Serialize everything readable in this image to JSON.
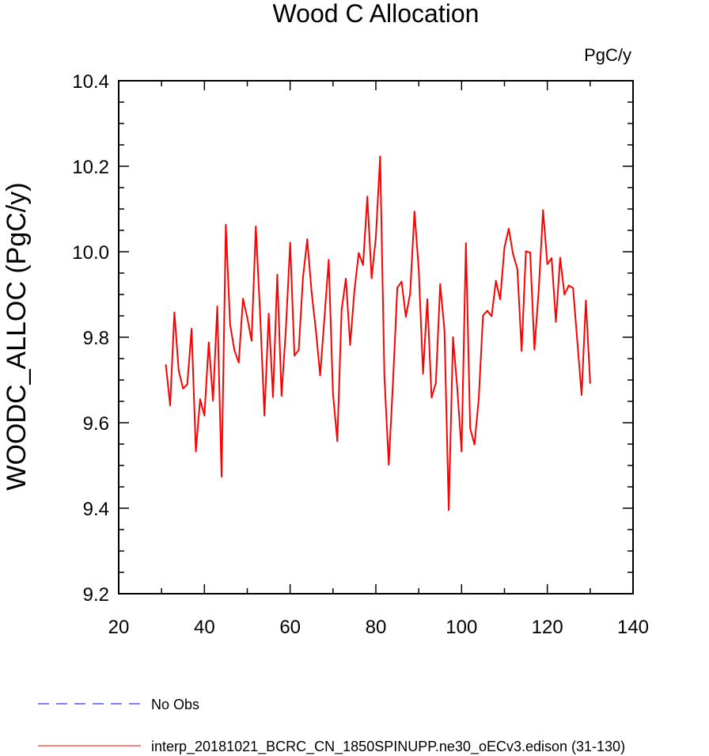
{
  "chart_data": {
    "type": "line",
    "title": "Wood C Allocation",
    "units_label": "PgC/y",
    "xlabel": "",
    "ylabel": "WOODC_ALLOC  (PgC/y)",
    "xlim": [
      20,
      140
    ],
    "ylim": [
      9.2,
      10.4
    ],
    "x_ticks": [
      20,
      40,
      60,
      80,
      100,
      120,
      140
    ],
    "x_tick_labels": [
      "20",
      "40",
      "60",
      "80",
      "100",
      "120",
      "140"
    ],
    "y_ticks": [
      9.2,
      9.4,
      9.6,
      9.8,
      10.0,
      10.2,
      10.4
    ],
    "y_tick_labels": [
      "9.2",
      "9.4",
      "9.6",
      "9.8",
      "10.0",
      "10.2",
      "10.4"
    ],
    "grid": false,
    "legend_position": "bottom-left",
    "series": [
      {
        "name": "No Obs",
        "color": "#0000ff",
        "style": "dashed",
        "x": [],
        "values": []
      },
      {
        "name": "interp_20181021_BCRC_CN_1850SPINUPP.ne30_oECv3.edison (31-130)",
        "color": "#ff0000",
        "style": "solid",
        "x": [
          31,
          32,
          33,
          34,
          35,
          36,
          37,
          38,
          39,
          40,
          41,
          42,
          43,
          44,
          45,
          46,
          47,
          48,
          49,
          50,
          51,
          52,
          53,
          54,
          55,
          56,
          57,
          58,
          59,
          60,
          61,
          62,
          63,
          64,
          65,
          66,
          67,
          68,
          69,
          70,
          71,
          72,
          73,
          74,
          75,
          76,
          77,
          78,
          79,
          80,
          81,
          82,
          83,
          84,
          85,
          86,
          87,
          88,
          89,
          90,
          91,
          92,
          93,
          94,
          95,
          96,
          97,
          98,
          99,
          100,
          101,
          102,
          103,
          104,
          105,
          106,
          107,
          108,
          109,
          110,
          111,
          112,
          113,
          114,
          115,
          116,
          117,
          118,
          119,
          120,
          121,
          122,
          123,
          124,
          125,
          126,
          127,
          128,
          129,
          130
        ],
        "values": [
          9.735,
          9.641,
          9.858,
          9.722,
          9.68,
          9.69,
          9.82,
          9.533,
          9.655,
          9.617,
          9.788,
          9.652,
          9.872,
          9.474,
          10.063,
          9.829,
          9.769,
          9.741,
          9.89,
          9.846,
          9.792,
          10.059,
          9.851,
          9.617,
          9.855,
          9.66,
          9.946,
          9.663,
          9.82,
          10.021,
          9.757,
          9.77,
          9.94,
          10.029,
          9.905,
          9.816,
          9.711,
          9.845,
          9.981,
          9.668,
          9.557,
          9.864,
          9.937,
          9.782,
          9.909,
          9.997,
          9.969,
          10.129,
          9.938,
          10.034,
          10.223,
          9.708,
          9.502,
          9.697,
          9.916,
          9.93,
          9.848,
          9.902,
          10.094,
          9.958,
          9.715,
          9.889,
          9.659,
          9.693,
          9.924,
          9.816,
          9.396,
          9.8,
          9.68,
          9.533,
          10.02,
          9.587,
          9.549,
          9.656,
          9.851,
          9.862,
          9.849,
          9.932,
          9.889,
          10.01,
          10.054,
          9.995,
          9.96,
          9.768,
          10.001,
          9.998,
          9.771,
          9.91,
          10.097,
          9.971,
          9.985,
          9.836,
          9.986,
          9.9,
          9.921,
          9.915,
          9.79,
          9.665,
          9.886,
          9.693
        ]
      }
    ]
  }
}
